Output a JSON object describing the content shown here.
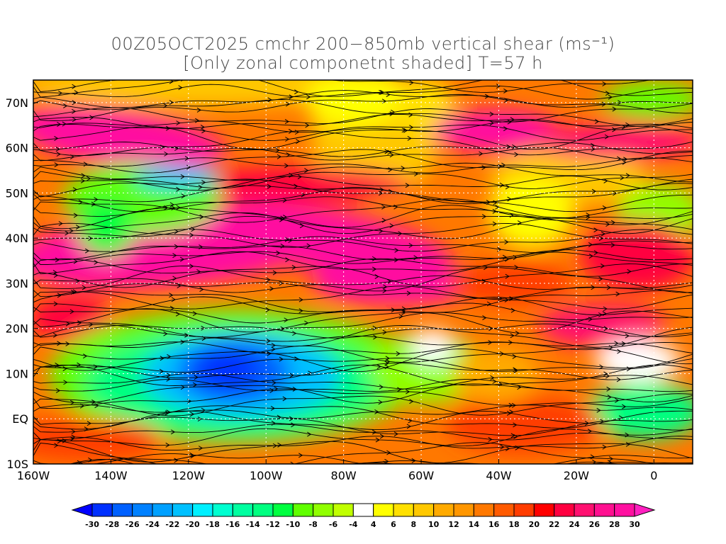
{
  "title": {
    "line1": "00Z05OCT2025 cmchr 200−850mb vertical shear (ms⁻¹)",
    "line2": "[Only zonal componetnt shaded] T=57 h"
  },
  "map": {
    "lon_range": [
      -160,
      10
    ],
    "lat_range": [
      -10,
      75
    ],
    "x_ticks": [
      "160W",
      "140W",
      "120W",
      "100W",
      "80W",
      "60W",
      "40W",
      "20W",
      "0"
    ],
    "x_tick_values": [
      -160,
      -140,
      -120,
      -100,
      -80,
      -60,
      -40,
      -20,
      0
    ],
    "y_ticks": [
      "70N",
      "60N",
      "50N",
      "40N",
      "30N",
      "20N",
      "10N",
      "EQ",
      "10S"
    ],
    "y_tick_values": [
      70,
      60,
      50,
      40,
      30,
      20,
      10,
      0,
      -10
    ]
  },
  "colorbar": {
    "labels": [
      "-30",
      "-28",
      "-26",
      "-24",
      "-22",
      "-20",
      "-18",
      "-16",
      "-14",
      "-12",
      "-10",
      "-8",
      "-6",
      "-4",
      "4",
      "6",
      "8",
      "10",
      "12",
      "14",
      "16",
      "18",
      "20",
      "22",
      "24",
      "26",
      "28",
      "30"
    ],
    "colors": [
      "#0030ff",
      "#0060ff",
      "#0080ff",
      "#00a0ff",
      "#00c0ff",
      "#00f0ff",
      "#00ffd0",
      "#00ffa0",
      "#00ff80",
      "#00ff40",
      "#60ff00",
      "#90ff00",
      "#c0ff00",
      "#ffffff",
      "#ffff00",
      "#ffe000",
      "#ffc800",
      "#ffaa00",
      "#ff9600",
      "#ff7800",
      "#ff5a00",
      "#ff3c00",
      "#ff0000",
      "#ff0040",
      "#ff1070",
      "#ff1090",
      "#ff10a0"
    ],
    "under_color": "#0000ff",
    "over_color": "#ff20c0"
  }
}
